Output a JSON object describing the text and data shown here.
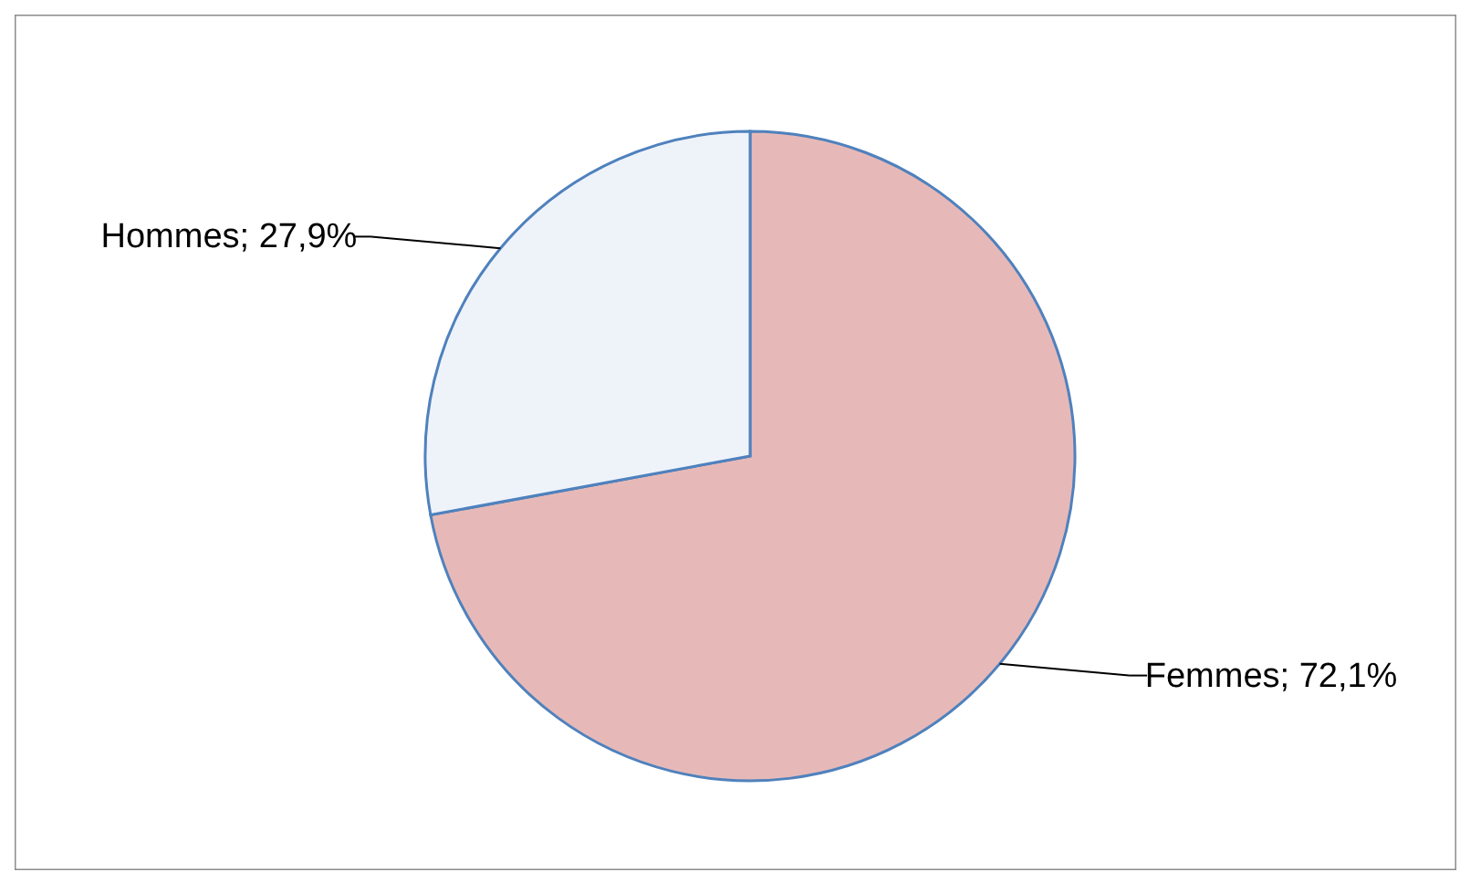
{
  "chart_data": {
    "type": "pie",
    "categories": [
      "Femmes",
      "Hommes"
    ],
    "values": [
      72.1,
      27.9
    ],
    "value_labels": [
      "72,1%",
      "27,9%"
    ],
    "colors": [
      "#e6b9b8",
      "#eef3fa"
    ]
  }
}
